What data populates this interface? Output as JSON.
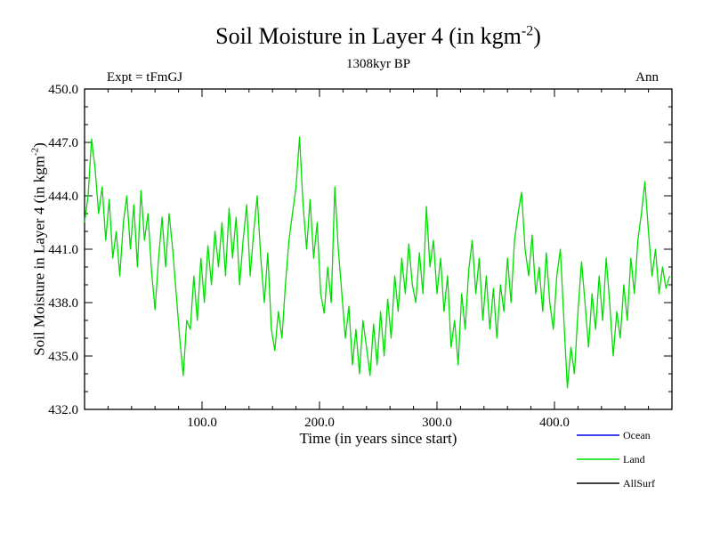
{
  "header": {
    "title_prefix": "Soil Moisture in Layer 4 (in kgm",
    "title_sup": "-2",
    "title_suffix": ")",
    "subtitle": "1308kyr BP",
    "experiment": "Expt = tFmGJ",
    "period": "Ann"
  },
  "axes": {
    "y_title_prefix": "Soil Moisture in Layer 4 (in kgm",
    "y_title_sup": "-2",
    "y_title_suffix": ")",
    "x_title": "Time (in years since start)"
  },
  "chart_data": {
    "type": "line",
    "title": "Soil Moisture in Layer 4 (in kgm-2)",
    "subtitle": "1308kyr BP",
    "xlabel": "Time (in years since start)",
    "ylabel": "Soil Moisture in Layer 4 (in kgm-2)",
    "xlim": [
      0,
      500
    ],
    "ylim": [
      432.0,
      450.0
    ],
    "grid": false,
    "legend_position": "bottom-right",
    "x_minor_step": 20,
    "y_minor_step": 1.0,
    "x_ticks": [
      {
        "v": 100,
        "label": "100.0"
      },
      {
        "v": 200,
        "label": "200.0"
      },
      {
        "v": 300,
        "label": "300.0"
      },
      {
        "v": 400,
        "label": "400.0"
      }
    ],
    "y_ticks": [
      {
        "v": 432.0,
        "label": "432.0"
      },
      {
        "v": 435.0,
        "label": "435.0"
      },
      {
        "v": 438.0,
        "label": "438.0"
      },
      {
        "v": 441.0,
        "label": "441.0"
      },
      {
        "v": 444.0,
        "label": "444.0"
      },
      {
        "v": 447.0,
        "label": "447.0"
      },
      {
        "v": 450.0,
        "label": "450.0"
      }
    ],
    "legend": [
      {
        "label": "Ocean",
        "color": "#0000ee"
      },
      {
        "label": "Land",
        "color": "#00dd00"
      },
      {
        "label": "AllSurf",
        "color": "#000000"
      }
    ],
    "series": [
      {
        "name": "Land",
        "color": "#00dd00",
        "x_start": 0,
        "x_step": 3,
        "values": [
          442.5,
          444.0,
          447.2,
          445.5,
          443.0,
          444.5,
          441.5,
          443.8,
          440.5,
          442.0,
          439.5,
          442.5,
          444.0,
          441.0,
          443.5,
          440.0,
          444.3,
          441.5,
          443.0,
          439.8,
          437.6,
          440.5,
          442.8,
          440.0,
          443.0,
          441.0,
          438.5,
          436.0,
          433.9,
          437.0,
          436.5,
          439.5,
          437.0,
          440.5,
          438.0,
          441.2,
          439.0,
          442.0,
          440.0,
          442.5,
          439.5,
          443.3,
          440.5,
          442.8,
          439.0,
          441.5,
          443.5,
          439.5,
          442.0,
          444.0,
          440.5,
          438.0,
          440.8,
          436.5,
          435.3,
          437.5,
          436.0,
          439.0,
          441.5,
          443.0,
          444.5,
          447.3,
          443.5,
          441.0,
          443.8,
          440.5,
          442.5,
          438.5,
          437.4,
          440.0,
          438.0,
          444.5,
          441.0,
          438.5,
          436.0,
          437.8,
          434.5,
          436.5,
          434.0,
          437.0,
          435.5,
          433.9,
          436.8,
          434.5,
          437.5,
          435.0,
          438.2,
          436.0,
          439.5,
          437.5,
          440.5,
          438.5,
          441.3,
          439.0,
          438.0,
          440.8,
          438.5,
          443.4,
          440.0,
          441.5,
          438.5,
          440.5,
          437.5,
          439.5,
          435.5,
          437.0,
          434.5,
          438.5,
          436.5,
          439.8,
          441.5,
          438.5,
          440.5,
          437.0,
          439.5,
          436.5,
          438.8,
          436.0,
          439.0,
          437.5,
          440.5,
          438.0,
          441.5,
          443.0,
          444.2,
          441.0,
          439.5,
          441.8,
          438.5,
          440.0,
          437.5,
          440.8,
          438.0,
          436.5,
          439.5,
          441.0,
          437.0,
          433.2,
          435.5,
          434.0,
          437.5,
          440.3,
          438.0,
          435.5,
          438.5,
          436.5,
          439.5,
          437.0,
          440.5,
          438.0,
          435.0,
          437.5,
          436.0,
          439.0,
          437.0,
          440.5,
          438.5,
          441.5,
          443.0,
          444.8,
          442.0,
          439.5,
          441.0,
          438.5,
          440.0,
          438.8,
          439.5
        ]
      }
    ]
  }
}
